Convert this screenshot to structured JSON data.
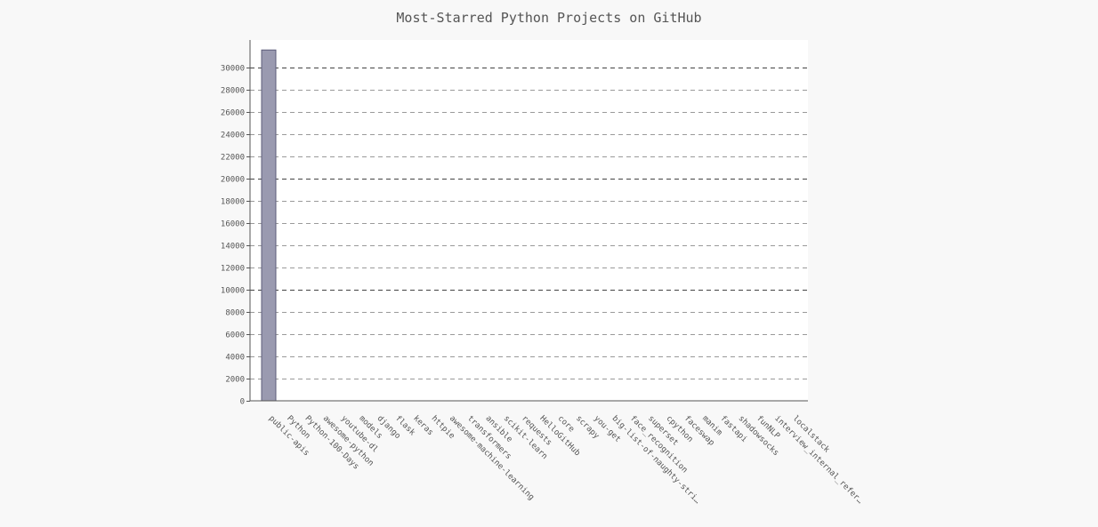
{
  "chart_data": {
    "type": "bar",
    "title": "Most-Starred Python Projects on GitHub",
    "xlabel": "",
    "ylabel": "",
    "ylim": [
      0,
      32500
    ],
    "yticks": [
      0,
      2000,
      4000,
      6000,
      8000,
      10000,
      12000,
      14000,
      16000,
      18000,
      20000,
      22000,
      24000,
      26000,
      28000,
      30000
    ],
    "major_grid_every": 10000,
    "grid": true,
    "legend": "none",
    "colors": {
      "bar_fill": "#9a9ab0",
      "bar_stroke": "#5c5c7a",
      "background": "#f8f8f8",
      "plot_background": "#ffffff"
    },
    "categories": [
      "public-apis",
      "Python",
      "Python-100-Days",
      "awesome-python",
      "youtube-dl",
      "models",
      "django",
      "flask",
      "keras",
      "httpie",
      "awesome-machine-learning",
      "transformers",
      "ansible",
      "scikit-learn",
      "requests",
      "HelloGitHub",
      "core",
      "scrapy",
      "you-get",
      "big-list-of-naughty-stri…",
      "face_recognition",
      "superset",
      "cpython",
      "faceswap",
      "manim",
      "fastapi",
      "shadowsocks",
      "funNLP",
      "interview_internal_refer…",
      "localstack"
    ],
    "values": [
      31600,
      0,
      0,
      0,
      0,
      0,
      0,
      0,
      0,
      0,
      0,
      0,
      0,
      0,
      0,
      0,
      0,
      0,
      0,
      0,
      0,
      0,
      0,
      0,
      0,
      0,
      0,
      0,
      0,
      0
    ]
  }
}
